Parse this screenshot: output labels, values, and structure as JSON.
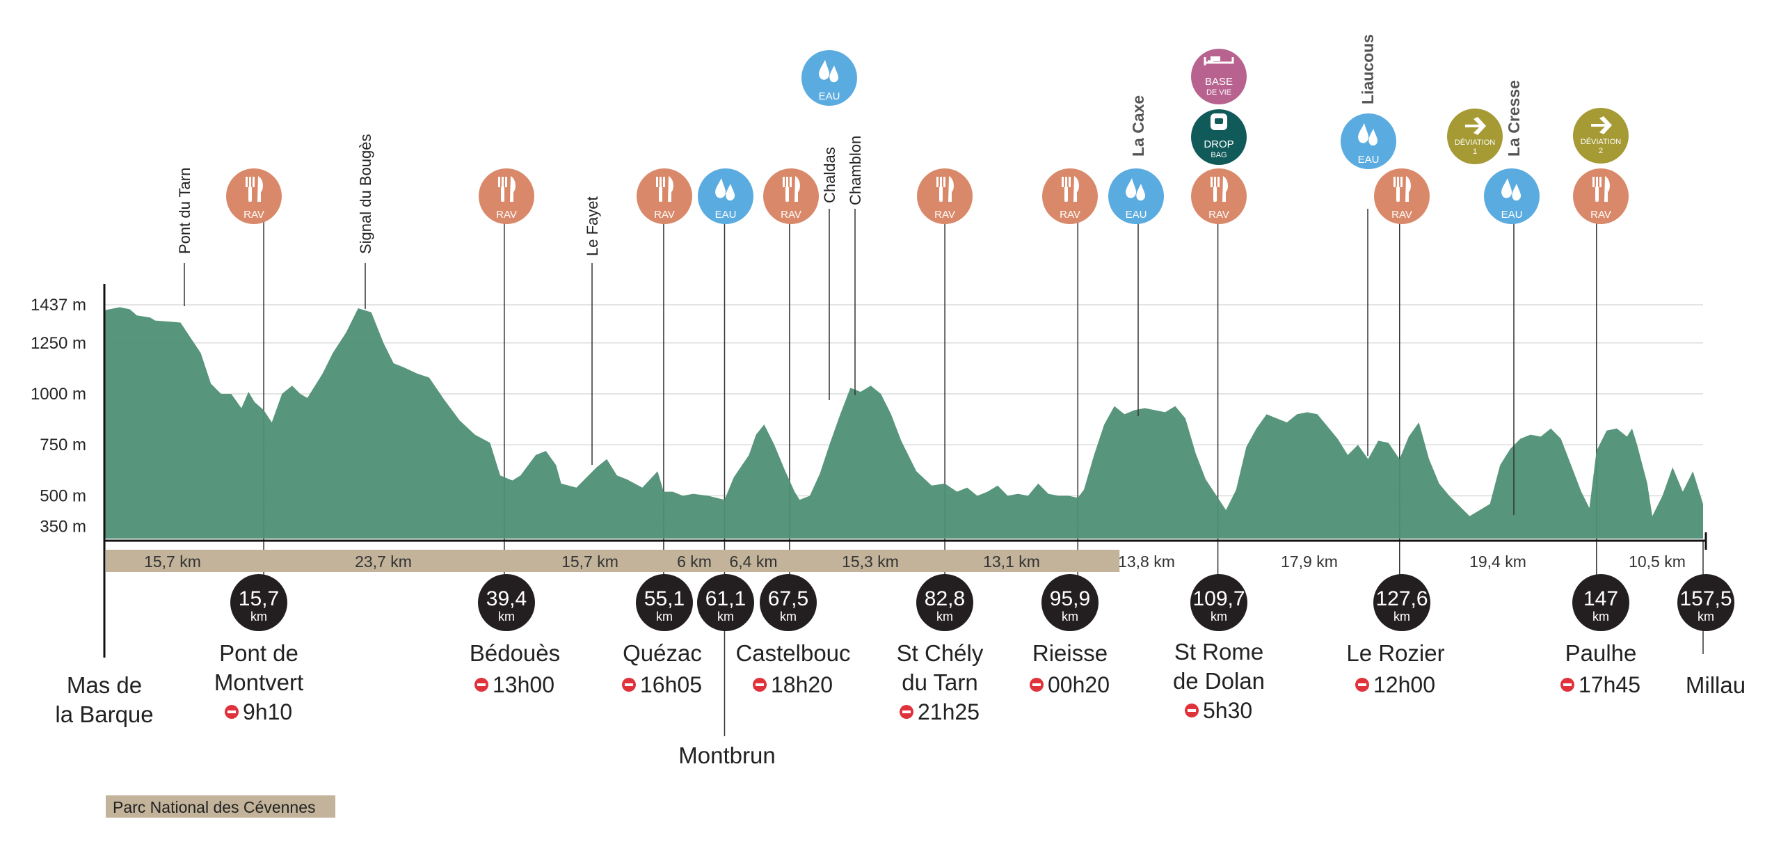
{
  "chart_data": {
    "type": "area",
    "title": "",
    "x_unit": "km",
    "y_unit": "m",
    "ylim": [
      290,
      1437
    ],
    "xlim": [
      0,
      157.5
    ],
    "y_ticks": [
      {
        "value": 1437,
        "label": "1437 m"
      },
      {
        "value": 1250,
        "label": "1250 m"
      },
      {
        "value": 1000,
        "label": "1000 m"
      },
      {
        "value": 750,
        "label": "750 m"
      },
      {
        "value": 500,
        "label": "500 m"
      },
      {
        "value": 350,
        "label": "350 m"
      }
    ],
    "grid": true,
    "profile": {
      "x": [
        0,
        1.5,
        2.5,
        3.2,
        4.5,
        5,
        7.5,
        9.5,
        10.5,
        11.5,
        12.5,
        13.5,
        14.2,
        14.8,
        15.7,
        16.5,
        17.5,
        18.5,
        19.3,
        20,
        21.5,
        22.5,
        23.8,
        25,
        26.3,
        27.5,
        28.5,
        29.5,
        30.8,
        32,
        33.5,
        35,
        36.5,
        38,
        39,
        40.2,
        41,
        42.5,
        43.5,
        44.5,
        45,
        46.5,
        47.5,
        48.5,
        49.5,
        50.5,
        51.5,
        53,
        54.5,
        55.1,
        56,
        57,
        58,
        59.5,
        61.1,
        62,
        63.5,
        64.2,
        65,
        66,
        67,
        68,
        68.5,
        69.5,
        70.5,
        71.5,
        72.5,
        73.5,
        74.5,
        75.5,
        76.5,
        77.5,
        78.5,
        80,
        81.5,
        82.8,
        84,
        85,
        86,
        87,
        88,
        89,
        90,
        91,
        92,
        93,
        94,
        95,
        95.9,
        96.5,
        97.5,
        98.5,
        99.5,
        100.5,
        101.5,
        102.5,
        103.5,
        104.5,
        105.5,
        106.5,
        107.5,
        108.5,
        109.7,
        110.5,
        111.5,
        112.5,
        113.5,
        114.5,
        115.5,
        116.5,
        117.5,
        118.5,
        119.5,
        120.5,
        121.5,
        122.5,
        123.5,
        124.5,
        125.5,
        126.5,
        127.6,
        128.5,
        129.5,
        130.5,
        131.5,
        132.5,
        133.5,
        134.5,
        135.5,
        136.5,
        137.5,
        138.5,
        139.5,
        140.5,
        141.5,
        142.5,
        143.5,
        144.5,
        145.5,
        146.3,
        147,
        148,
        149,
        150,
        150.5,
        151,
        152,
        152.5,
        153.5,
        154.5,
        155.5,
        156.5,
        157.5
      ],
      "elevation": [
        1410,
        1425,
        1415,
        1385,
        1375,
        1360,
        1350,
        1200,
        1050,
        1000,
        1000,
        930,
        1010,
        960,
        920,
        860,
        1000,
        1040,
        1000,
        980,
        1100,
        1200,
        1300,
        1420,
        1400,
        1250,
        1150,
        1130,
        1100,
        1080,
        970,
        870,
        800,
        760,
        600,
        575,
        600,
        700,
        720,
        650,
        560,
        540,
        590,
        640,
        680,
        600,
        580,
        540,
        620,
        520,
        520,
        500,
        510,
        500,
        480,
        590,
        700,
        800,
        850,
        750,
        630,
        520,
        480,
        500,
        610,
        760,
        900,
        1030,
        1010,
        1040,
        1000,
        900,
        770,
        620,
        550,
        560,
        520,
        540,
        500,
        520,
        550,
        500,
        510,
        500,
        560,
        510,
        500,
        500,
        490,
        530,
        700,
        850,
        940,
        900,
        920,
        930,
        920,
        910,
        940,
        880,
        710,
        580,
        490,
        430,
        530,
        740,
        830,
        900,
        880,
        860,
        900,
        910,
        900,
        840,
        780,
        700,
        750,
        680,
        770,
        760,
        680,
        790,
        860,
        680,
        560,
        500,
        450,
        400,
        430,
        460,
        650,
        730,
        780,
        800,
        790,
        830,
        780,
        650,
        520,
        440,
        720,
        820,
        830,
        790,
        830,
        750,
        560,
        400,
        500,
        640,
        520,
        620,
        460,
        500,
        360,
        420,
        390,
        380,
        370,
        340,
        330
      ]
    },
    "vertical_labels": [
      {
        "km": 4.8,
        "label": "Pont du Tarn",
        "bold": false
      },
      {
        "km": 15.7,
        "label": "",
        "bold": false
      },
      {
        "km": 15.7,
        "label": "Signal du Bougès",
        "bold": false
      },
      {
        "km": 39.4,
        "label": "",
        "bold": false
      },
      {
        "km": 47.3,
        "label": "Le Fayet",
        "bold": false
      },
      {
        "km": 70.7,
        "label": "Chaldas",
        "bold": false
      },
      {
        "km": 73.1,
        "label": "Chamblon",
        "bold": false
      },
      {
        "km": 101.9,
        "label": "La Caxe",
        "bold": true
      },
      {
        "km": 124.5,
        "label": "Liaucous",
        "bold": true
      },
      {
        "km": 138.2,
        "label": "La Cresse",
        "bold": true
      }
    ],
    "segments": [
      {
        "label": "15,7 km",
        "shaded": true
      },
      {
        "label": "23,7 km",
        "shaded": true
      },
      {
        "label": "15,7 km",
        "shaded": true
      },
      {
        "label": "6 km",
        "shaded": true
      },
      {
        "label": "6,4 km",
        "shaded": true
      },
      {
        "label": "15,3 km",
        "shaded": true
      },
      {
        "label": "13,1 km",
        "shaded": true
      },
      {
        "label": "13,8 km",
        "shaded": false
      },
      {
        "label": "17,9 km",
        "shaded": false
      },
      {
        "label": "19,4 km",
        "shaded": false
      },
      {
        "label": "10,5 km",
        "shaded": false
      }
    ],
    "checkpoints": [
      {
        "km_label": "15,7",
        "unit": "km",
        "place": [
          "Pont de",
          "Montvert"
        ],
        "time": "9h10"
      },
      {
        "km_label": "39,4",
        "unit": "km",
        "place": [
          "Bédouès"
        ],
        "time": "13h00"
      },
      {
        "km_label": "55,1",
        "unit": "km",
        "place": [
          "Quézac"
        ],
        "time": "16h05"
      },
      {
        "km_label": "61,1",
        "unit": "km",
        "place": [
          "Montbrun"
        ],
        "time": ""
      },
      {
        "km_label": "67,5",
        "unit": "km",
        "place": [
          "Castelbouc"
        ],
        "time": "18h20"
      },
      {
        "km_label": "82,8",
        "unit": "km",
        "place": [
          "St Chély",
          "du Tarn"
        ],
        "time": "21h25"
      },
      {
        "km_label": "95,9",
        "unit": "km",
        "place": [
          "Rieisse"
        ],
        "time": "00h20"
      },
      {
        "km_label": "109,7",
        "unit": "km",
        "place": [
          "St Rome",
          "de Dolan"
        ],
        "time": "5h30"
      },
      {
        "km_label": "127,6",
        "unit": "km",
        "place": [
          "Le Rozier"
        ],
        "time": "12h00"
      },
      {
        "km_label": "147",
        "unit": "km",
        "place": [
          "Paulhe"
        ],
        "time": "17h45"
      },
      {
        "km_label": "157,5",
        "unit": "km",
        "place": [
          "Millau"
        ],
        "time": ""
      }
    ],
    "start": {
      "place": [
        "Mas de",
        "la Barque"
      ]
    },
    "icons": [
      {
        "type": "rav",
        "label": "RAV",
        "color": "#d9896a"
      },
      {
        "type": "eau",
        "label": "EAU",
        "color": "#5aabdf"
      },
      {
        "type": "base",
        "label": [
          "BASE",
          "DE VIE"
        ],
        "color": "#b7628f"
      },
      {
        "type": "drop",
        "label": [
          "DROP",
          "BAG"
        ],
        "color": "#115a5a"
      },
      {
        "type": "deviation",
        "label": [
          "DÉVIATION",
          "1"
        ],
        "color": "#a59a34"
      },
      {
        "type": "deviation",
        "label": [
          "DÉVIATION",
          "2"
        ],
        "color": "#a59a34"
      }
    ],
    "legend": [
      {
        "label": "Parc National des Cévennes",
        "color": "#c2b39a"
      }
    ]
  },
  "colors": {
    "profile_fill": "#4e8f75",
    "segment_band": "#c2b39a",
    "km_badge": "#231f20",
    "cutoff": "#e0323a"
  }
}
